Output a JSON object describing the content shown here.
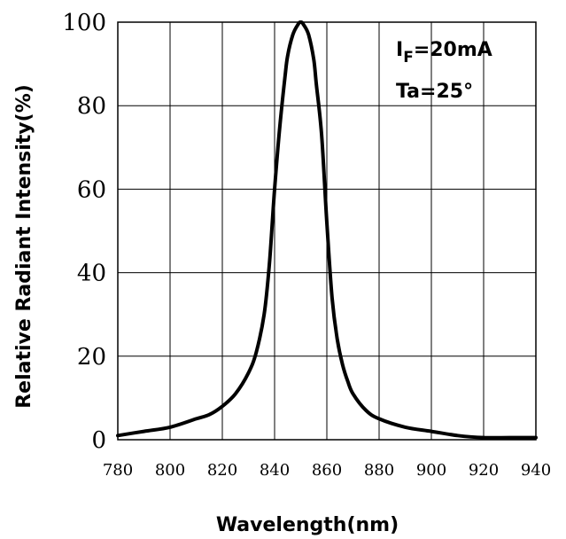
{
  "chart_data": {
    "type": "line",
    "title": "",
    "xlabel": "Wavelength(nm)",
    "ylabel": "Relative Radiant Intensity(%)",
    "xlim": [
      780,
      940
    ],
    "ylim": [
      0,
      100
    ],
    "grid": true,
    "x_ticks": [
      "780",
      "800",
      "820",
      "840",
      "860",
      "880",
      "900",
      "920",
      "940"
    ],
    "y_ticks": [
      "0",
      "20",
      "40",
      "60",
      "80",
      "100"
    ],
    "annotations": {
      "current_main": "I",
      "current_sub": "F",
      "current_value": "=20mA",
      "temperature": "Ta=25°"
    },
    "series": [
      {
        "x": [
          780,
          790,
          800,
          810,
          815,
          820,
          825,
          830,
          833,
          836,
          838,
          840,
          842,
          844,
          845,
          847,
          849,
          850,
          851,
          853,
          855,
          856,
          858,
          860,
          862,
          864,
          866,
          868,
          870,
          875,
          880,
          890,
          900,
          910,
          920,
          930,
          940
        ],
        "y": [
          1,
          2,
          3,
          5,
          6,
          8,
          11,
          16,
          21,
          30,
          42,
          60,
          75,
          87,
          92,
          97,
          99.5,
          100,
          99.5,
          97,
          91,
          85,
          73,
          52,
          34,
          24,
          18,
          14,
          11,
          7,
          5,
          3,
          2,
          1,
          0.5,
          0.5,
          0.5
        ]
      }
    ]
  }
}
